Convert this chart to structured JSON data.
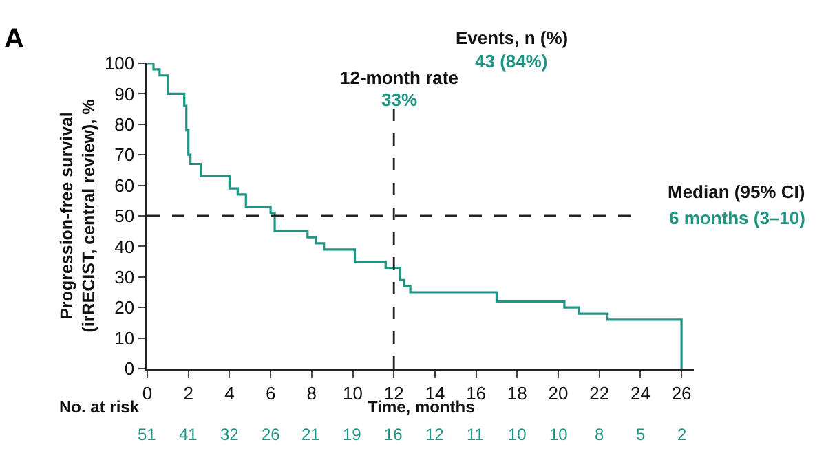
{
  "chart_data": {
    "type": "step",
    "title": "A",
    "xlabel": "Time, months",
    "ylabel": "Progression-free survival\n(irRECIST, central review), %",
    "x": [
      0,
      0.3,
      0.6,
      1.0,
      1.8,
      1.9,
      2.0,
      2.1,
      2.6,
      4.0,
      4.4,
      4.8,
      6.0,
      6.2,
      7.8,
      8.2,
      8.6,
      10.1,
      11.6,
      12.3,
      12.5,
      12.8,
      17.0,
      20.3,
      21.0,
      22.4,
      26.0
    ],
    "series": [
      {
        "color": "#1f9584",
        "values": [
          100,
          98,
          96,
          90,
          86,
          78,
          70,
          67,
          63,
          59,
          57,
          53,
          51,
          45,
          43,
          41,
          39,
          35,
          33,
          29,
          27,
          25,
          22,
          20,
          18,
          16,
          0
        ]
      }
    ],
    "xlim": [
      0,
      26.6
    ],
    "xticks": [
      0,
      2,
      4,
      6,
      8,
      10,
      12,
      14,
      16,
      18,
      20,
      22,
      24,
      26
    ],
    "ylim": [
      0,
      100
    ],
    "yticks": [
      0,
      10,
      20,
      30,
      40,
      50,
      60,
      70,
      80,
      90,
      100
    ],
    "ref_lines": [
      {
        "axis": "y",
        "value": 50,
        "color": "#222222",
        "line_style": "dashed"
      },
      {
        "axis": "x",
        "value": 12,
        "color": "#222222",
        "line_style": "dashed"
      }
    ],
    "annotations": [
      "Events, n (%)",
      "43 (84%)",
      "12-month rate",
      "33%",
      "Median (95% CI)",
      "6 months (3–10)",
      "No. at risk",
      "51",
      "41",
      "32",
      "26",
      "21",
      "19",
      "16",
      "12",
      "11",
      "10",
      "10",
      "8",
      "5",
      "2"
    ],
    "legend": false,
    "marker": "none",
    "line_style": "solid"
  }
}
